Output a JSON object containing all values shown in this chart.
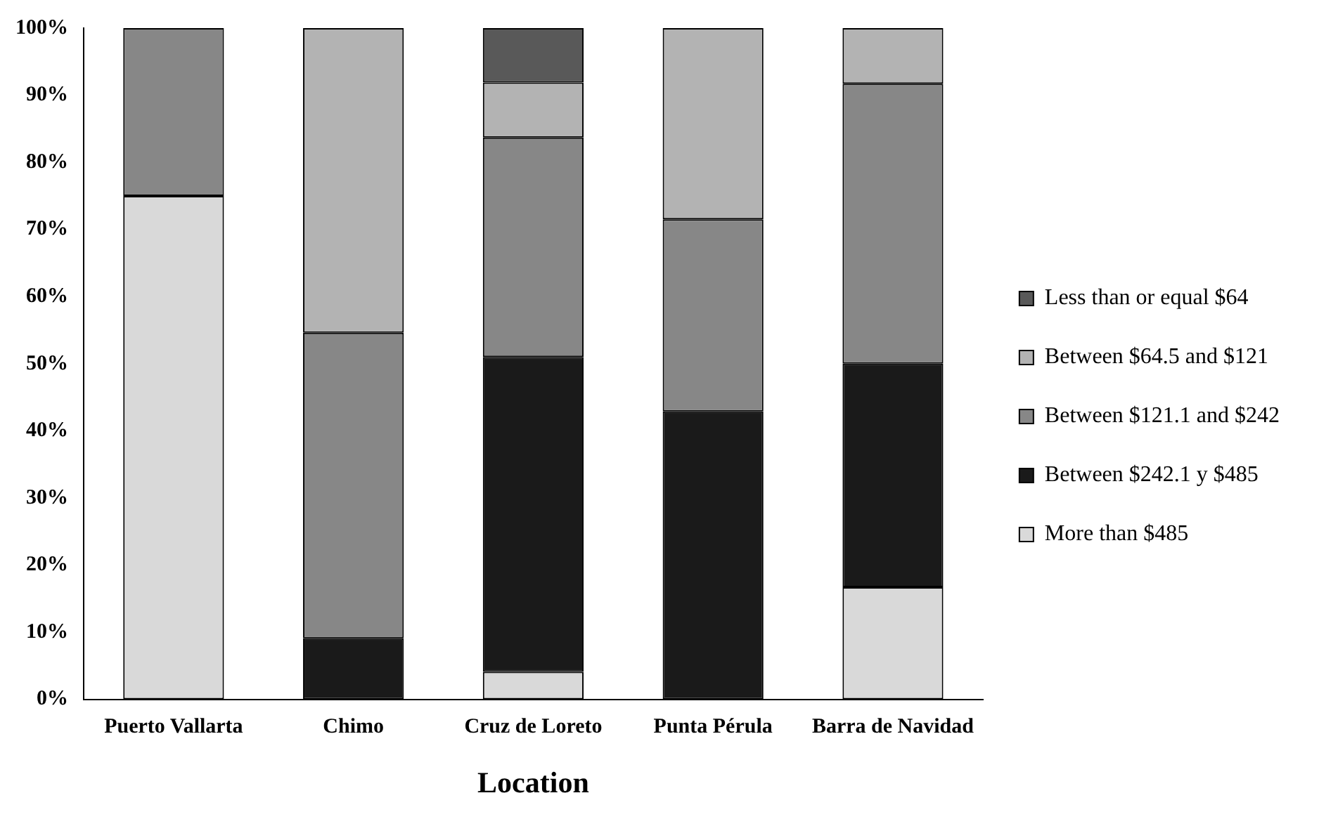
{
  "chart_data": {
    "type": "bar",
    "stacked": true,
    "xlabel": "Location",
    "categories": [
      "Puerto Vallarta",
      "Chimo",
      "Cruz de Loreto",
      "Punta Pérula",
      "Barra de Navidad"
    ],
    "series": [
      {
        "name": "More than $485",
        "color": "#d9d9d9",
        "values": [
          75,
          0,
          4.1,
          0,
          16.7
        ]
      },
      {
        "name": "Between $242.1 y $485",
        "color": "#1a1a1a",
        "values": [
          0,
          9.1,
          46.9,
          42.9,
          33.3
        ]
      },
      {
        "name": "Between $121.1 and $242",
        "color": "#878787",
        "values": [
          25,
          45.5,
          32.7,
          28.6,
          41.7
        ]
      },
      {
        "name": "Between $64.5 and $121",
        "color": "#b3b3b3",
        "values": [
          0,
          45.4,
          8.2,
          28.5,
          8.3
        ]
      },
      {
        "name": "Less than or equal $64",
        "color": "#595959",
        "values": [
          0,
          0,
          8.1,
          0,
          0
        ]
      }
    ],
    "ylim": [
      0,
      100
    ],
    "yticks": [
      {
        "value": 0,
        "label": "0%"
      },
      {
        "value": 10,
        "label": "10%"
      },
      {
        "value": 20,
        "label": "20%"
      },
      {
        "value": 30,
        "label": "30%"
      },
      {
        "value": 40,
        "label": "40%"
      },
      {
        "value": 50,
        "label": "50%"
      },
      {
        "value": 60,
        "label": "60%"
      },
      {
        "value": 70,
        "label": "70%"
      },
      {
        "value": 80,
        "label": "80%"
      },
      {
        "value": 90,
        "label": "90%"
      },
      {
        "value": 100,
        "label": "100%"
      }
    ],
    "grid": false,
    "legend": "right"
  }
}
